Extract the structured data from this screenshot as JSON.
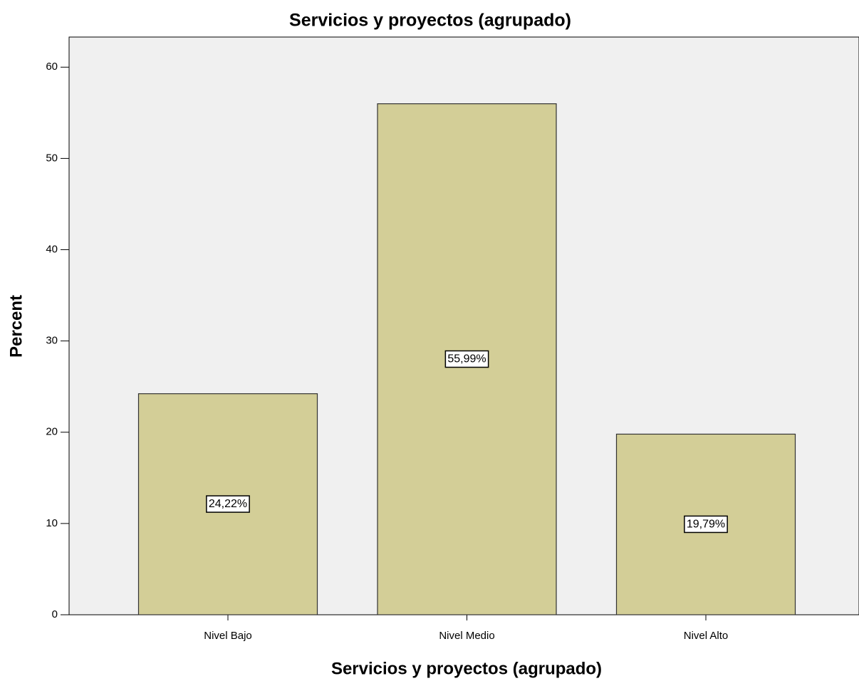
{
  "chart_data": {
    "type": "bar",
    "title": "Servicios y proyectos (agrupado)",
    "x_label": "Servicios y proyectos (agrupado)",
    "y_label": "Percent",
    "categories": [
      "Nivel Bajo",
      "Nivel Medio",
      "Nivel Alto"
    ],
    "values": [
      24.22,
      55.99,
      19.79
    ],
    "value_labels": [
      "24,22%",
      "55,99%",
      "19,79%"
    ],
    "color": "#d3ce97",
    "ylim": [
      0,
      63.3
    ],
    "yticks": [
      0,
      10,
      20,
      30,
      40,
      50,
      60
    ],
    "grid": false
  }
}
